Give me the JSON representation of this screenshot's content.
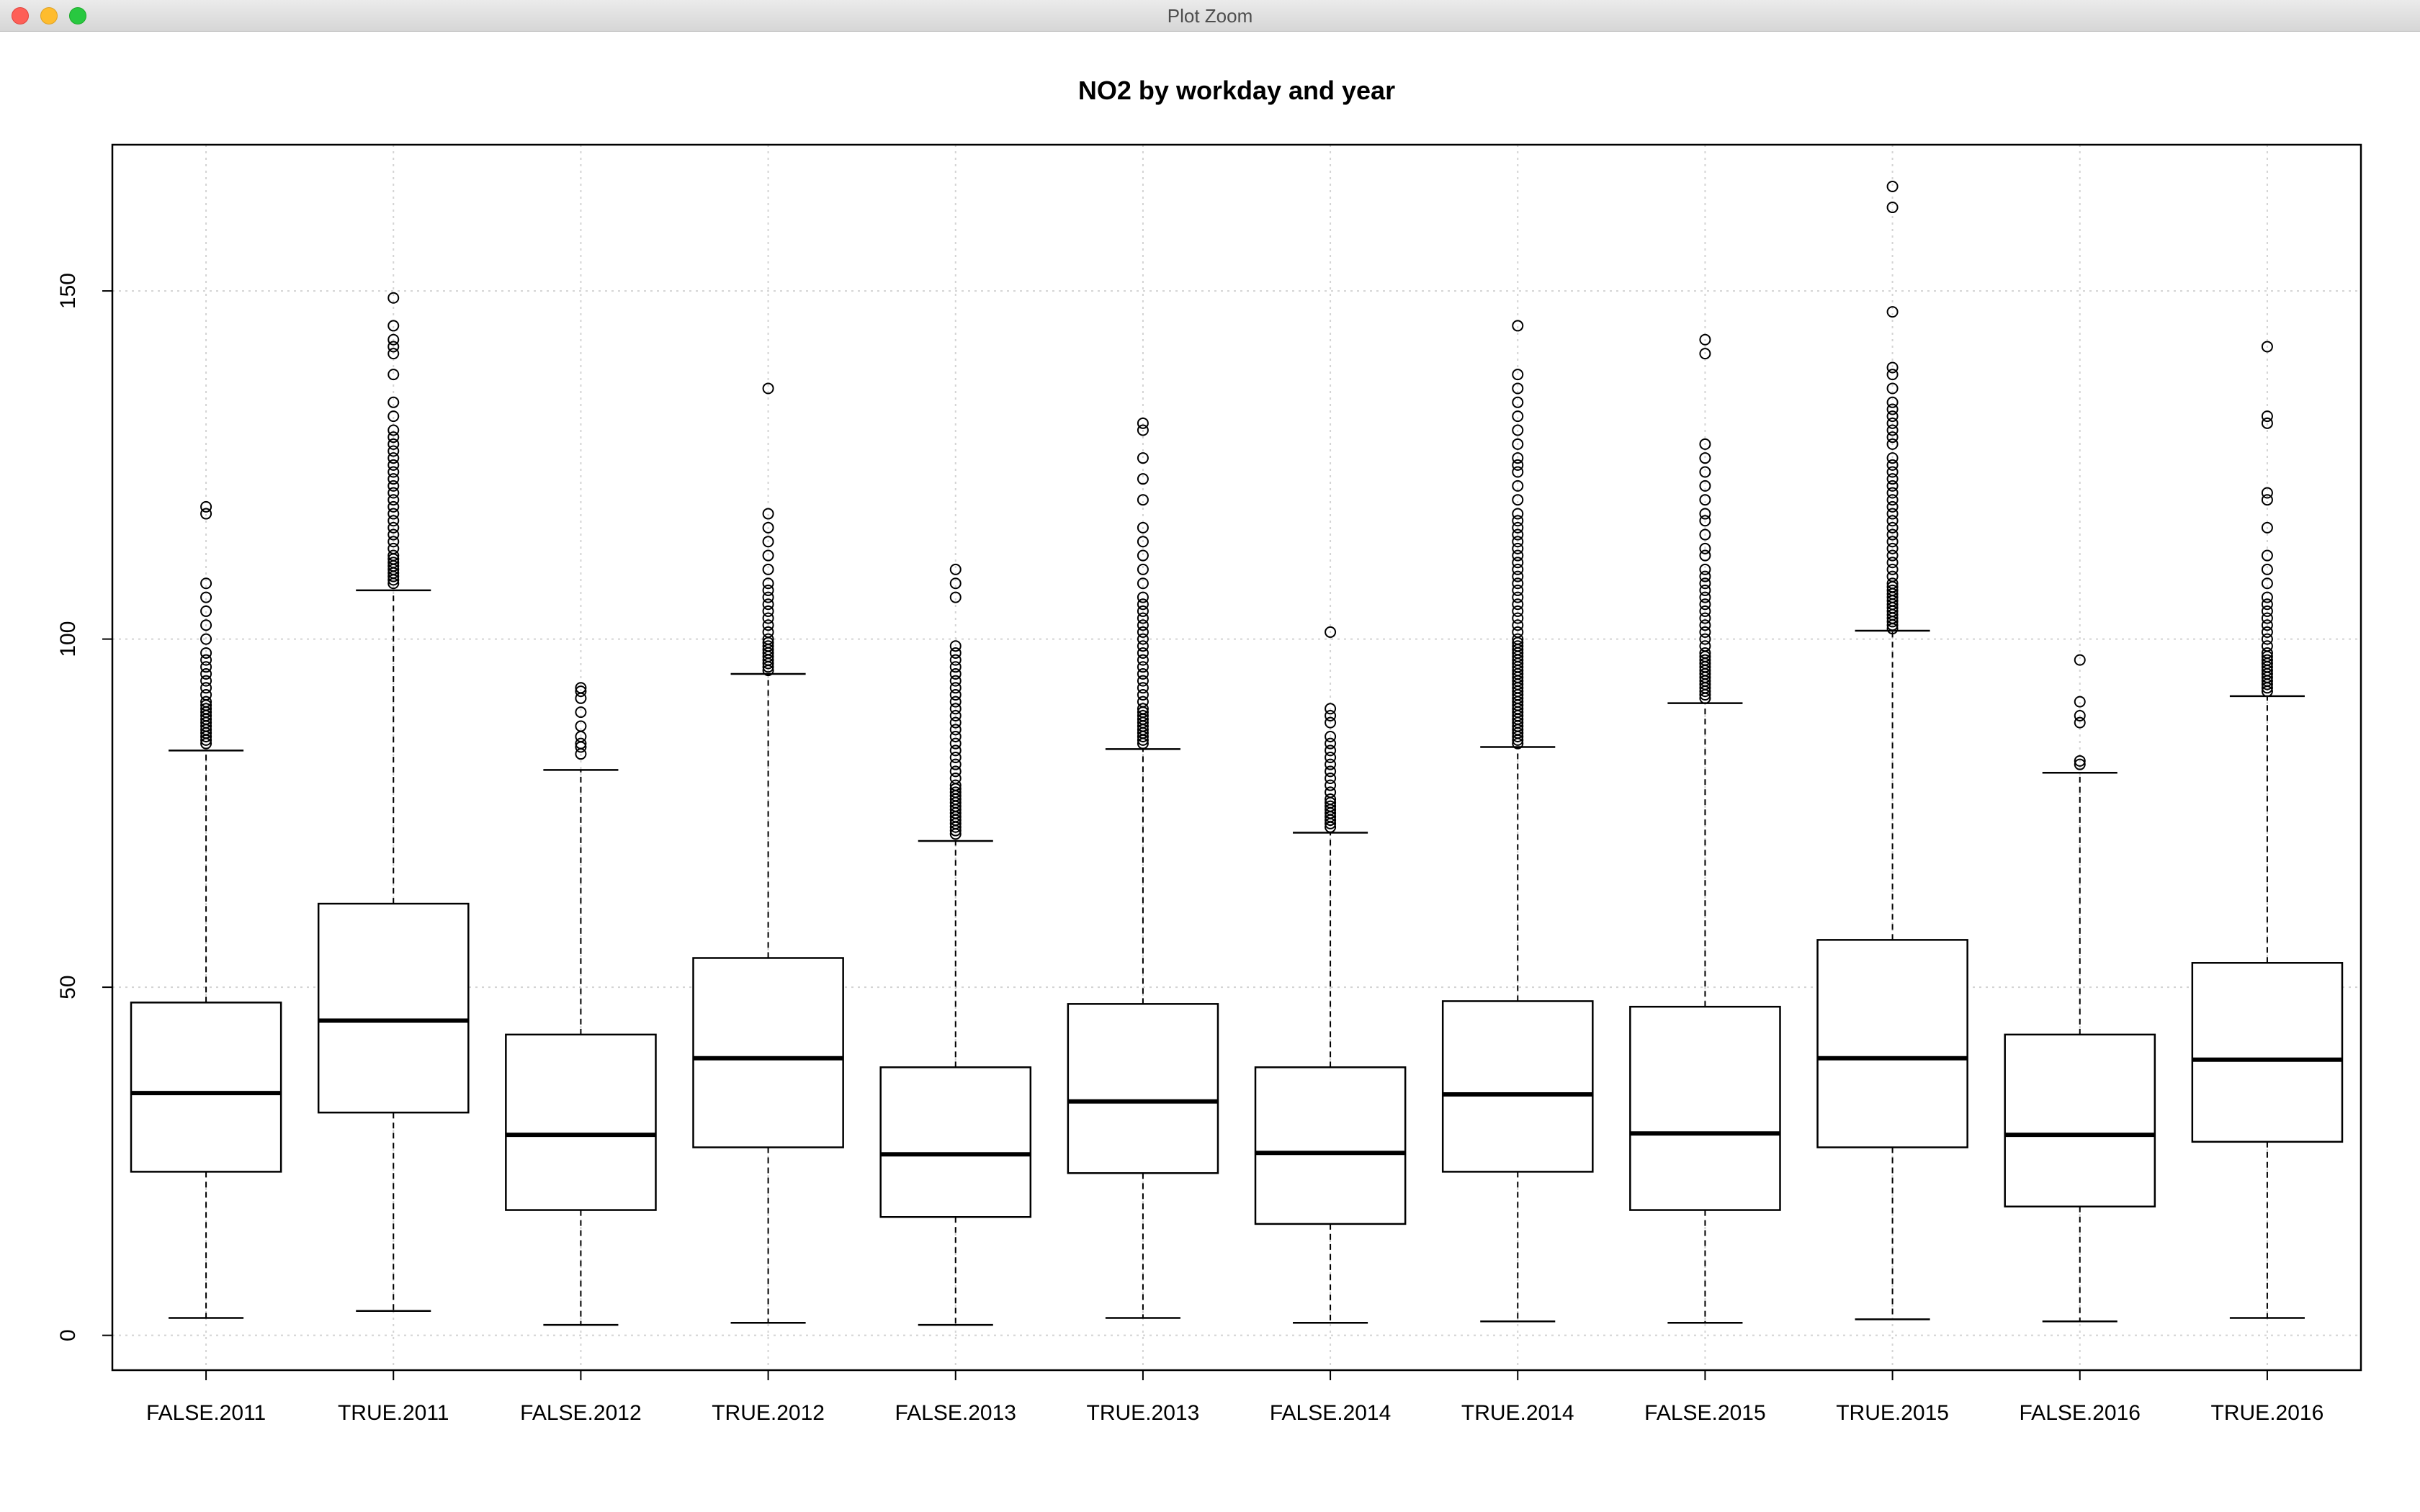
{
  "window": {
    "title": "Plot Zoom"
  },
  "chart_data": {
    "type": "boxplot",
    "title": "NO2 by workday and year",
    "xlabel": "",
    "ylabel": "",
    "ylim": [
      -5,
      171
    ],
    "yticks": [
      0,
      50,
      100,
      150
    ],
    "grid": true,
    "categories": [
      "FALSE.2011",
      "TRUE.2011",
      "FALSE.2012",
      "TRUE.2012",
      "FALSE.2013",
      "TRUE.2013",
      "FALSE.2014",
      "TRUE.2014",
      "FALSE.2015",
      "TRUE.2015",
      "FALSE.2016",
      "TRUE.2016"
    ],
    "boxes": [
      {
        "label": "FALSE.2011",
        "min": 2.5,
        "q1": 23.5,
        "median": 34.8,
        "q3": 47.8,
        "max": 84,
        "outliers": [
          85,
          85.5,
          86,
          86.5,
          87,
          87.5,
          88,
          88.5,
          89,
          89.5,
          90,
          90.5,
          91,
          92,
          93,
          94,
          95,
          96,
          97,
          98,
          100,
          102,
          104,
          106,
          108,
          118,
          119
        ]
      },
      {
        "label": "TRUE.2011",
        "min": 3.5,
        "q1": 32,
        "median": 45.2,
        "q3": 62,
        "max": 107,
        "outliers": [
          108,
          108.5,
          109,
          109.5,
          110,
          110.5,
          111,
          111.5,
          112,
          113,
          114,
          115,
          116,
          117,
          118,
          119,
          120,
          121,
          122,
          123,
          124,
          125,
          126,
          127,
          128,
          129,
          130,
          132,
          134,
          138,
          141,
          142,
          143,
          145,
          149
        ]
      },
      {
        "label": "FALSE.2012",
        "min": 1.5,
        "q1": 18,
        "median": 28.8,
        "q3": 43.2,
        "max": 81.2,
        "outliers": [
          83.5,
          84.5,
          85,
          86,
          87.5,
          89.5,
          91.5,
          92.5,
          93
        ]
      },
      {
        "label": "TRUE.2012",
        "min": 1.8,
        "q1": 27,
        "median": 39.8,
        "q3": 54.2,
        "max": 95,
        "outliers": [
          95.5,
          96,
          96.5,
          97,
          97.5,
          98,
          98.5,
          99,
          99.5,
          100,
          101,
          102,
          103,
          104,
          105,
          106,
          107,
          108,
          110,
          112,
          114,
          116,
          118,
          136
        ]
      },
      {
        "label": "FALSE.2013",
        "min": 1.5,
        "q1": 17,
        "median": 26,
        "q3": 38.5,
        "max": 71,
        "outliers": [
          72,
          72.5,
          73,
          73.5,
          74,
          74.5,
          75,
          75.5,
          76,
          76.5,
          77,
          77.5,
          78,
          78.5,
          79,
          80,
          81,
          82,
          83,
          84,
          85,
          86,
          87,
          88,
          89,
          90,
          91,
          92,
          93,
          94,
          95,
          96,
          97,
          98,
          99,
          106,
          108,
          110
        ]
      },
      {
        "label": "TRUE.2013",
        "min": 2.5,
        "q1": 23.3,
        "median": 33.6,
        "q3": 47.6,
        "max": 84.2,
        "outliers": [
          85,
          85.5,
          86,
          86.5,
          87,
          87.5,
          88,
          88.5,
          89,
          89.5,
          90,
          91,
          92,
          93,
          94,
          95,
          96,
          97,
          98,
          99,
          100,
          101,
          102,
          103,
          104,
          105,
          106,
          108,
          110,
          112,
          114,
          116,
          120,
          123,
          126,
          130,
          131
        ]
      },
      {
        "label": "FALSE.2014",
        "min": 1.8,
        "q1": 16,
        "median": 26.2,
        "q3": 38.5,
        "max": 72.2,
        "outliers": [
          73,
          73.5,
          74,
          74.5,
          75,
          75.5,
          76,
          76.5,
          77,
          78,
          79,
          80,
          81,
          82,
          83,
          84,
          85,
          86,
          88,
          89,
          90,
          101
        ]
      },
      {
        "label": "TRUE.2014",
        "min": 2,
        "q1": 23.5,
        "median": 34.6,
        "q3": 48,
        "max": 84.5,
        "outliers": [
          85,
          85.5,
          86,
          86.5,
          87,
          87.5,
          88,
          88.5,
          89,
          89.5,
          90,
          90.5,
          91,
          91.5,
          92,
          92.5,
          93,
          93.5,
          94,
          94.5,
          95,
          95.5,
          96,
          96.5,
          97,
          97.5,
          98,
          98.5,
          99,
          99.5,
          100,
          101,
          102,
          103,
          104,
          105,
          106,
          107,
          108,
          109,
          110,
          111,
          112,
          113,
          114,
          115,
          116,
          117,
          118,
          120,
          122,
          124,
          125,
          126,
          128,
          130,
          132,
          134,
          136,
          138,
          145
        ]
      },
      {
        "label": "FALSE.2015",
        "min": 1.8,
        "q1": 18,
        "median": 29,
        "q3": 47.2,
        "max": 90.8,
        "outliers": [
          91.5,
          92,
          92.5,
          93,
          93.5,
          94,
          94.5,
          95,
          95.5,
          96,
          96.5,
          97,
          97.5,
          98,
          99,
          100,
          101,
          102,
          103,
          104,
          105,
          106,
          107,
          108,
          109,
          110,
          112,
          113,
          115,
          117,
          118,
          120,
          122,
          124,
          126,
          128,
          141,
          143
        ]
      },
      {
        "label": "TRUE.2015",
        "min": 2.3,
        "q1": 27,
        "median": 39.8,
        "q3": 56.8,
        "max": 101.2,
        "outliers": [
          101.5,
          102,
          102.5,
          103,
          103.5,
          104,
          104.5,
          105,
          105.5,
          106,
          106.5,
          107,
          107.5,
          108,
          109,
          110,
          111,
          112,
          113,
          114,
          115,
          116,
          117,
          118,
          119,
          120,
          121,
          122,
          123,
          124,
          125,
          126,
          128,
          129,
          130,
          131,
          132,
          133,
          134,
          136,
          138,
          139,
          147,
          162,
          165
        ]
      },
      {
        "label": "FALSE.2016",
        "min": 2,
        "q1": 18.5,
        "median": 28.8,
        "q3": 43.2,
        "max": 80.8,
        "outliers": [
          82,
          82.5,
          88,
          89,
          91,
          97
        ]
      },
      {
        "label": "TRUE.2016",
        "min": 2.5,
        "q1": 27.8,
        "median": 39.6,
        "q3": 53.5,
        "max": 91.8,
        "outliers": [
          92.5,
          93,
          93.5,
          94,
          94.5,
          95,
          95.5,
          96,
          96.5,
          97,
          97.5,
          98,
          99,
          100,
          101,
          102,
          103,
          104,
          105,
          106,
          108,
          110,
          112,
          116,
          120,
          121,
          131,
          132,
          142
        ]
      }
    ]
  }
}
